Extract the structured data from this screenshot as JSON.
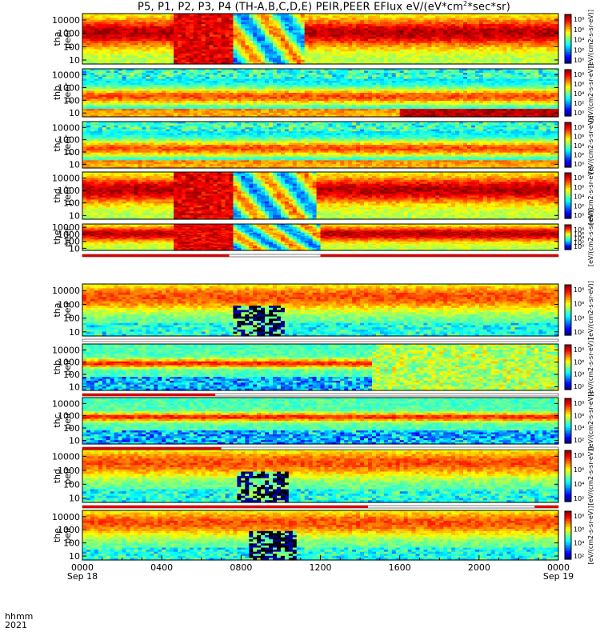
{
  "title": {
    "prefix": "P5, P1, P2, P3, P4 (TH-A,B,C,D,E) PEIR,PEER EFlux eV/(eV*cm",
    "exp": "2",
    "suffix": "*sec*sr)"
  },
  "footer": {
    "hhmm": "hhmm",
    "year": "2021"
  },
  "colors": {
    "red_bar": "#dd0000",
    "orbit_line": "#000000"
  },
  "chart_data": {
    "type": "heatmap",
    "x_axis": {
      "range": [
        "2021-09-18 00:00",
        "2021-09-19 00:00"
      ],
      "ticks": [
        {
          "t": 0,
          "label": "0000",
          "sub": "Sep 18"
        },
        {
          "t": 4,
          "label": "0400",
          "sub": ""
        },
        {
          "t": 8,
          "label": "0800",
          "sub": ""
        },
        {
          "t": 12,
          "label": "1200",
          "sub": ""
        },
        {
          "t": 16,
          "label": "1600",
          "sub": ""
        },
        {
          "t": 20,
          "label": "2000",
          "sub": ""
        },
        {
          "t": 24,
          "label": "0000",
          "sub": "Sep 19"
        }
      ]
    },
    "y_axis": {
      "scale": "log",
      "unit": "eV",
      "range": [
        5,
        30000
      ],
      "tick_labels": [
        "10000",
        "1000",
        "100",
        "10"
      ],
      "tick_values": [
        10000,
        1000,
        100,
        10
      ]
    },
    "colorbar_label": "[eV/(cm2-s-sr-eV)]",
    "panels": [
      {
        "label": "tha",
        "sublabel": "peer",
        "species": "electron",
        "cb_ticks": [
          "10⁸",
          "10⁶",
          "10⁴",
          "10²",
          "10⁰"
        ],
        "cb_log": [
          0,
          8
        ]
      },
      {
        "label": "thb",
        "sublabel": "peer",
        "species": "electron",
        "cb_ticks": [
          "10⁸",
          "10⁶",
          "10⁴",
          "10²",
          "10⁰"
        ],
        "cb_log": [
          0,
          8
        ]
      },
      {
        "label": "thc",
        "sublabel": "peer",
        "species": "electron",
        "cb_ticks": [
          "10⁸",
          "10⁶",
          "10⁴",
          "10²",
          "10⁰"
        ],
        "cb_log": [
          0,
          8
        ]
      },
      {
        "label": "thd",
        "sublabel": "peer",
        "species": "electron",
        "cb_ticks": [
          "10⁸",
          "10⁶",
          "10⁴",
          "10²",
          "10⁰"
        ],
        "cb_log": [
          0,
          8
        ]
      },
      {
        "label": "the",
        "sublabel": "peer",
        "species": "electron",
        "cb_ticks": [
          "10⁸",
          "10⁶",
          "10⁴",
          "10²",
          "10⁰"
        ],
        "cb_log": [
          0,
          8
        ]
      },
      {
        "label": "tha",
        "sublabel": "peir",
        "species": "ion",
        "cb_ticks": [
          "10⁸",
          "10⁶",
          "10⁴",
          "10²"
        ],
        "cb_log": [
          1,
          9
        ]
      },
      {
        "label": "thb",
        "sublabel": "peir",
        "species": "ion",
        "cb_ticks": [
          "10⁸",
          "10⁶",
          "10⁴",
          "10²"
        ],
        "cb_log": [
          1,
          9
        ]
      },
      {
        "label": "thc",
        "sublabel": "peir",
        "species": "ion",
        "cb_ticks": [
          "10⁸",
          "10⁶",
          "10⁴",
          "10²"
        ],
        "cb_log": [
          1,
          9
        ]
      },
      {
        "label": "thd",
        "sublabel": "peir",
        "species": "ion",
        "cb_ticks": [
          "10⁸",
          "10⁶",
          "10⁴",
          "10²"
        ],
        "cb_log": [
          1,
          9
        ]
      },
      {
        "label": "the",
        "sublabel": "peir",
        "species": "ion",
        "cb_ticks": [
          "10⁸",
          "10⁶",
          "10⁴",
          "10²"
        ],
        "cb_log": [
          1,
          9
        ]
      }
    ],
    "mode_bars": [
      {
        "between": [
          "the peer",
          "tha peir"
        ],
        "segments": [
          {
            "from": 0,
            "to": 7.4,
            "color": "red"
          },
          {
            "from": 12.0,
            "to": 24,
            "color": "red"
          }
        ]
      },
      {
        "between": [
          "tha peir",
          "thb peir"
        ],
        "segments": [
          {
            "from": 0,
            "to": 24,
            "color": "none"
          }
        ]
      },
      {
        "between": [
          "thb peir",
          "thc peir"
        ],
        "segments": [
          {
            "from": 0,
            "to": 6.7,
            "color": "red"
          }
        ]
      },
      {
        "between": [
          "thc peir",
          "thd peir"
        ],
        "segments": [
          {
            "from": 0,
            "to": 7.0,
            "color": "red"
          }
        ]
      },
      {
        "between": [
          "thd peir",
          "the peir"
        ],
        "segments": [
          {
            "from": 0,
            "to": 14.4,
            "color": "red"
          },
          {
            "from": 22.8,
            "to": 24,
            "color": "red"
          }
        ]
      }
    ]
  }
}
